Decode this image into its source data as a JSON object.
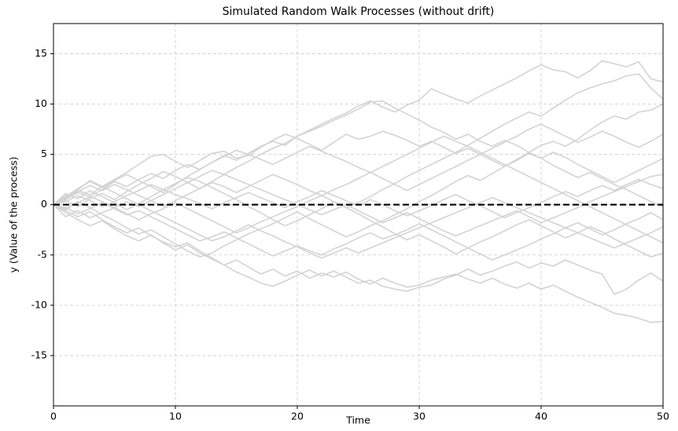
{
  "chart_data": {
    "type": "line",
    "title": "Simulated Random Walk Processes (without drift)",
    "x_label": "Time",
    "y_label": "y (Value of the process)",
    "xlim": [
      0,
      50
    ],
    "ylim": [
      -20,
      18
    ],
    "xticks": [
      0,
      10,
      20,
      30,
      40,
      50
    ],
    "yticks": [
      -15,
      -10,
      -5,
      0,
      5,
      10,
      15
    ],
    "grid": true,
    "reference_line": {
      "value": 0,
      "color": "#000000",
      "style": "dashed"
    },
    "x": [
      0,
      1,
      2,
      3,
      4,
      5,
      6,
      7,
      8,
      9,
      10,
      11,
      12,
      13,
      14,
      15,
      16,
      17,
      18,
      19,
      20,
      21,
      22,
      23,
      24,
      25,
      26,
      27,
      28,
      29,
      30,
      31,
      32,
      33,
      34,
      35,
      36,
      37,
      38,
      39,
      40,
      41,
      42,
      43,
      44,
      45,
      46,
      47,
      48,
      49,
      50
    ],
    "series": [
      {
        "color": "#d3d3d3",
        "values": [
          0,
          0.5,
          1.2,
          0.8,
          1.5,
          2.3,
          1.8,
          2.5,
          3.1,
          2.6,
          3.4,
          4.0,
          3.5,
          4.2,
          4.9,
          4.4,
          5.1,
          5.8,
          6.3,
          5.9,
          6.8,
          7.4,
          8.0,
          8.6,
          9.1,
          9.8,
          10.3,
          9.7,
          9.2,
          9.9,
          10.4,
          11.5,
          11.0,
          10.5,
          10.1,
          10.8,
          11.4,
          12.0,
          12.6,
          13.3,
          13.9,
          13.4,
          13.2,
          12.6,
          13.3,
          14.3,
          14.0,
          13.7,
          14.2,
          12.5,
          12.2
        ]
      },
      {
        "color": "#d3d3d3",
        "values": [
          0,
          -0.6,
          -1.2,
          -0.7,
          -1.5,
          -2.2,
          -2.8,
          -2.3,
          -3.1,
          -3.7,
          -4.2,
          -3.8,
          -4.6,
          -5.3,
          -6.0,
          -5.5,
          -6.2,
          -6.9,
          -6.4,
          -7.1,
          -6.6,
          -7.3,
          -6.8,
          -7.2,
          -6.7,
          -7.4,
          -7.9,
          -7.3,
          -7.8,
          -8.2,
          -8.0,
          -7.5,
          -7.2,
          -6.9,
          -7.4,
          -7.8,
          -7.3,
          -7.9,
          -8.3,
          -7.8,
          -8.4,
          -8.0,
          -8.6,
          -9.2,
          -9.7,
          -10.2,
          -10.8,
          -11.0,
          -11.3,
          -11.7,
          -11.6
        ]
      },
      {
        "color": "#d3d3d3",
        "values": [
          0,
          -0.8,
          -1.5,
          -2.1,
          -1.6,
          -2.4,
          -3.1,
          -3.6,
          -3.0,
          -3.8,
          -4.5,
          -4.0,
          -4.8,
          -5.4,
          -6.0,
          -6.7,
          -7.2,
          -7.8,
          -8.1,
          -7.6,
          -7.0,
          -6.5,
          -7.1,
          -6.6,
          -7.2,
          -7.8,
          -7.5,
          -8.1,
          -8.4,
          -8.6,
          -8.2,
          -8.0,
          -7.4,
          -7.0,
          -6.4,
          -7.0,
          -6.6,
          -6.1,
          -5.7,
          -6.3,
          -5.8,
          -6.1,
          -5.5,
          -6.0,
          -6.5,
          -6.9,
          -8.9,
          -8.4,
          -7.5,
          -6.8,
          -7.6
        ]
      },
      {
        "color": "#d3d3d3",
        "values": [
          0,
          0.9,
          1.4,
          1.0,
          1.8,
          2.5,
          3.2,
          4.0,
          4.8,
          5.0,
          4.3,
          3.7,
          4.4,
          5.1,
          5.3,
          4.6,
          4.9,
          5.7,
          6.4,
          7.0,
          6.6,
          6.0,
          5.4,
          6.2,
          7.0,
          6.5,
          6.8,
          7.3,
          6.9,
          6.4,
          5.8,
          6.3,
          5.7,
          5.1,
          5.6,
          5.0,
          4.4,
          3.8,
          4.5,
          5.2,
          5.9,
          6.3,
          5.8,
          6.5,
          7.4,
          8.2,
          8.8,
          8.5,
          9.2,
          9.4,
          10.0
        ]
      },
      {
        "color": "#d3d3d3",
        "values": [
          0,
          0.4,
          -0.2,
          0.6,
          1.1,
          0.5,
          1.3,
          2.0,
          2.6,
          3.3,
          2.8,
          2.2,
          1.6,
          2.3,
          3.0,
          3.7,
          4.3,
          5.0,
          5.6,
          6.1,
          6.8,
          7.3,
          7.8,
          8.4,
          8.9,
          9.5,
          10.2,
          10.3,
          9.6,
          9.0,
          8.4,
          7.7,
          7.2,
          6.5,
          7.0,
          6.3,
          5.8,
          6.4,
          5.9,
          5.2,
          4.6,
          3.9,
          3.3,
          2.7,
          3.2,
          2.6,
          2.0,
          1.5,
          0.9,
          0.3,
          -0.2
        ]
      },
      {
        "color": "#d3d3d3",
        "values": [
          0,
          -0.5,
          0.3,
          -0.3,
          -1.0,
          -1.6,
          -2.3,
          -2.9,
          -2.5,
          -3.2,
          -3.9,
          -4.6,
          -5.2,
          -4.8,
          -4.1,
          -3.5,
          -2.9,
          -2.4,
          -1.9,
          -1.3,
          -0.7,
          -1.4,
          -2.0,
          -2.6,
          -3.2,
          -2.7,
          -2.1,
          -1.6,
          -1.0,
          -0.4,
          0.3,
          0.9,
          1.6,
          2.3,
          2.9,
          2.4,
          3.1,
          3.8,
          4.4,
          5.1,
          4.6,
          5.2,
          4.7,
          4.0,
          3.4,
          2.8,
          2.2,
          2.8,
          3.4,
          4.0,
          4.6
        ]
      },
      {
        "color": "#d3d3d3",
        "values": [
          0,
          1.1,
          0.6,
          1.4,
          0.8,
          0.2,
          -0.5,
          0.1,
          0.8,
          1.5,
          2.1,
          2.7,
          2.3,
          1.7,
          1.1,
          0.5,
          -0.2,
          -0.8,
          -1.5,
          -2.1,
          -1.6,
          -1.0,
          -0.4,
          0.3,
          -0.3,
          -0.9,
          -1.6,
          -2.2,
          -2.9,
          -3.5,
          -3.0,
          -3.6,
          -4.2,
          -4.9,
          -4.3,
          -3.7,
          -3.2,
          -2.6,
          -2.0,
          -1.5,
          -2.1,
          -2.7,
          -3.3,
          -2.8,
          -2.2,
          -2.7,
          -3.4,
          -4.0,
          -4.6,
          -5.2,
          -4.8
        ]
      },
      {
        "color": "#d3d3d3",
        "values": [
          0,
          0.7,
          1.3,
          1.9,
          1.4,
          2.0,
          1.5,
          0.9,
          0.4,
          -0.2,
          0.4,
          1.0,
          1.6,
          2.2,
          1.8,
          1.2,
          1.8,
          2.4,
          3.0,
          2.5,
          2.0,
          1.4,
          0.9,
          0.3,
          -0.3,
          0.2,
          0.8,
          1.5,
          2.1,
          2.8,
          3.4,
          4.0,
          4.6,
          5.2,
          5.9,
          6.6,
          7.3,
          8.0,
          8.6,
          9.2,
          8.8,
          9.6,
          10.4,
          11.1,
          11.6,
          12.0,
          12.3,
          12.8,
          13.0,
          11.6,
          10.5
        ]
      },
      {
        "color": "#d3d3d3",
        "values": [
          0,
          -0.3,
          -0.9,
          -0.4,
          0.2,
          -0.4,
          -1.0,
          -0.6,
          -1.2,
          -1.8,
          -2.4,
          -3.0,
          -3.6,
          -3.2,
          -2.7,
          -3.3,
          -3.9,
          -4.5,
          -5.1,
          -4.6,
          -4.1,
          -4.6,
          -5.0,
          -4.4,
          -3.9,
          -3.3,
          -2.8,
          -3.4,
          -3.0,
          -2.5,
          -1.9,
          -2.5,
          -3.1,
          -3.7,
          -4.3,
          -4.9,
          -5.5,
          -5.0,
          -4.5,
          -4.0,
          -3.4,
          -2.9,
          -2.3,
          -1.8,
          -2.4,
          -3.0,
          -2.5,
          -1.9,
          -1.4,
          -0.8,
          -1.5
        ]
      },
      {
        "color": "#d3d3d3",
        "values": [
          0,
          0.3,
          0.9,
          0.4,
          -0.2,
          0.3,
          0.9,
          1.4,
          2.0,
          1.5,
          1.0,
          0.6,
          0.1,
          -0.4,
          0.2,
          0.7,
          1.2,
          0.7,
          0.2,
          -0.3,
          0.3,
          0.8,
          1.4,
          0.9,
          0.4,
          -0.1,
          0.5,
          0.0,
          -0.6,
          -1.1,
          -0.6,
          -0.1,
          0.5,
          1.0,
          0.4,
          -0.1,
          -0.7,
          -1.3,
          -0.8,
          -0.3,
          0.2,
          0.8,
          1.3,
          0.8,
          1.4,
          1.9,
          1.4,
          2.0,
          2.5,
          2.0,
          1.6
        ]
      },
      {
        "color": "#d3d3d3",
        "values": [
          0,
          -1.2,
          -0.6,
          -1.3,
          -0.8,
          -0.3,
          0.3,
          -0.2,
          0.4,
          1.0,
          1.6,
          2.2,
          2.8,
          3.4,
          3.0,
          2.5,
          2.0,
          1.5,
          1.0,
          0.5,
          0.0,
          -0.5,
          -1.0,
          -0.5,
          0.0,
          -0.6,
          -1.2,
          -1.8,
          -1.3,
          -0.8,
          -1.4,
          -2.0,
          -2.6,
          -3.1,
          -2.6,
          -2.1,
          -1.6,
          -1.1,
          -0.6,
          -1.2,
          -1.8,
          -1.3,
          -0.8,
          -0.3,
          0.3,
          0.8,
          1.3,
          1.8,
          2.3,
          2.8,
          3.0
        ]
      },
      {
        "color": "#d3d3d3",
        "values": [
          0,
          0.6,
          1.5,
          2.4,
          1.8,
          1.2,
          0.6,
          0.0,
          -0.6,
          -1.2,
          -1.8,
          -2.4,
          -3.0,
          -3.6,
          -3.2,
          -2.6,
          -2.0,
          -2.6,
          -3.1,
          -3.7,
          -4.2,
          -4.8,
          -5.3,
          -4.8,
          -4.3,
          -4.8,
          -4.3,
          -3.8,
          -3.3,
          -2.8,
          -2.3,
          -1.8,
          -1.3,
          -0.8,
          -0.3,
          0.2,
          0.7,
          0.2,
          -0.3,
          -0.8,
          -1.3,
          -1.8,
          -2.3,
          -2.8,
          -3.3,
          -3.8,
          -4.3,
          -3.8,
          -3.3,
          -2.8,
          -2.2
        ]
      },
      {
        "color": "#d3d3d3",
        "values": [
          0,
          0.8,
          1.6,
          2.3,
          1.7,
          2.4,
          3.0,
          2.4,
          1.8,
          1.2,
          2.0,
          2.8,
          3.5,
          4.2,
          4.8,
          5.4,
          5.0,
          4.5,
          4.0,
          4.6,
          5.2,
          5.8,
          5.3,
          4.8,
          4.3,
          3.7,
          3.2,
          2.6,
          2.0,
          1.4,
          2.0,
          2.6,
          3.2,
          3.8,
          4.4,
          5.0,
          5.6,
          6.2,
          6.8,
          7.5,
          8.0,
          7.4,
          6.8,
          6.2,
          6.7,
          7.3,
          6.8,
          6.2,
          5.7,
          6.3,
          7.0
        ]
      },
      {
        "color": "#d3d3d3",
        "values": [
          0,
          -0.4,
          0.2,
          0.8,
          0.3,
          -0.3,
          -0.9,
          -1.5,
          -0.9,
          -0.4,
          0.2,
          -0.4,
          -1.0,
          -1.6,
          -2.2,
          -2.8,
          -2.3,
          -1.7,
          -1.2,
          -0.7,
          -0.2,
          0.4,
          0.9,
          1.5,
          2.0,
          2.6,
          3.2,
          3.8,
          4.4,
          5.0,
          5.6,
          6.2,
          6.8,
          6.3,
          5.8,
          5.2,
          4.6,
          4.0,
          3.4,
          2.8,
          2.2,
          1.6,
          1.0,
          0.4,
          -0.2,
          -0.8,
          -1.4,
          -2.0,
          -2.6,
          -3.2,
          -3.8
        ]
      }
    ]
  }
}
